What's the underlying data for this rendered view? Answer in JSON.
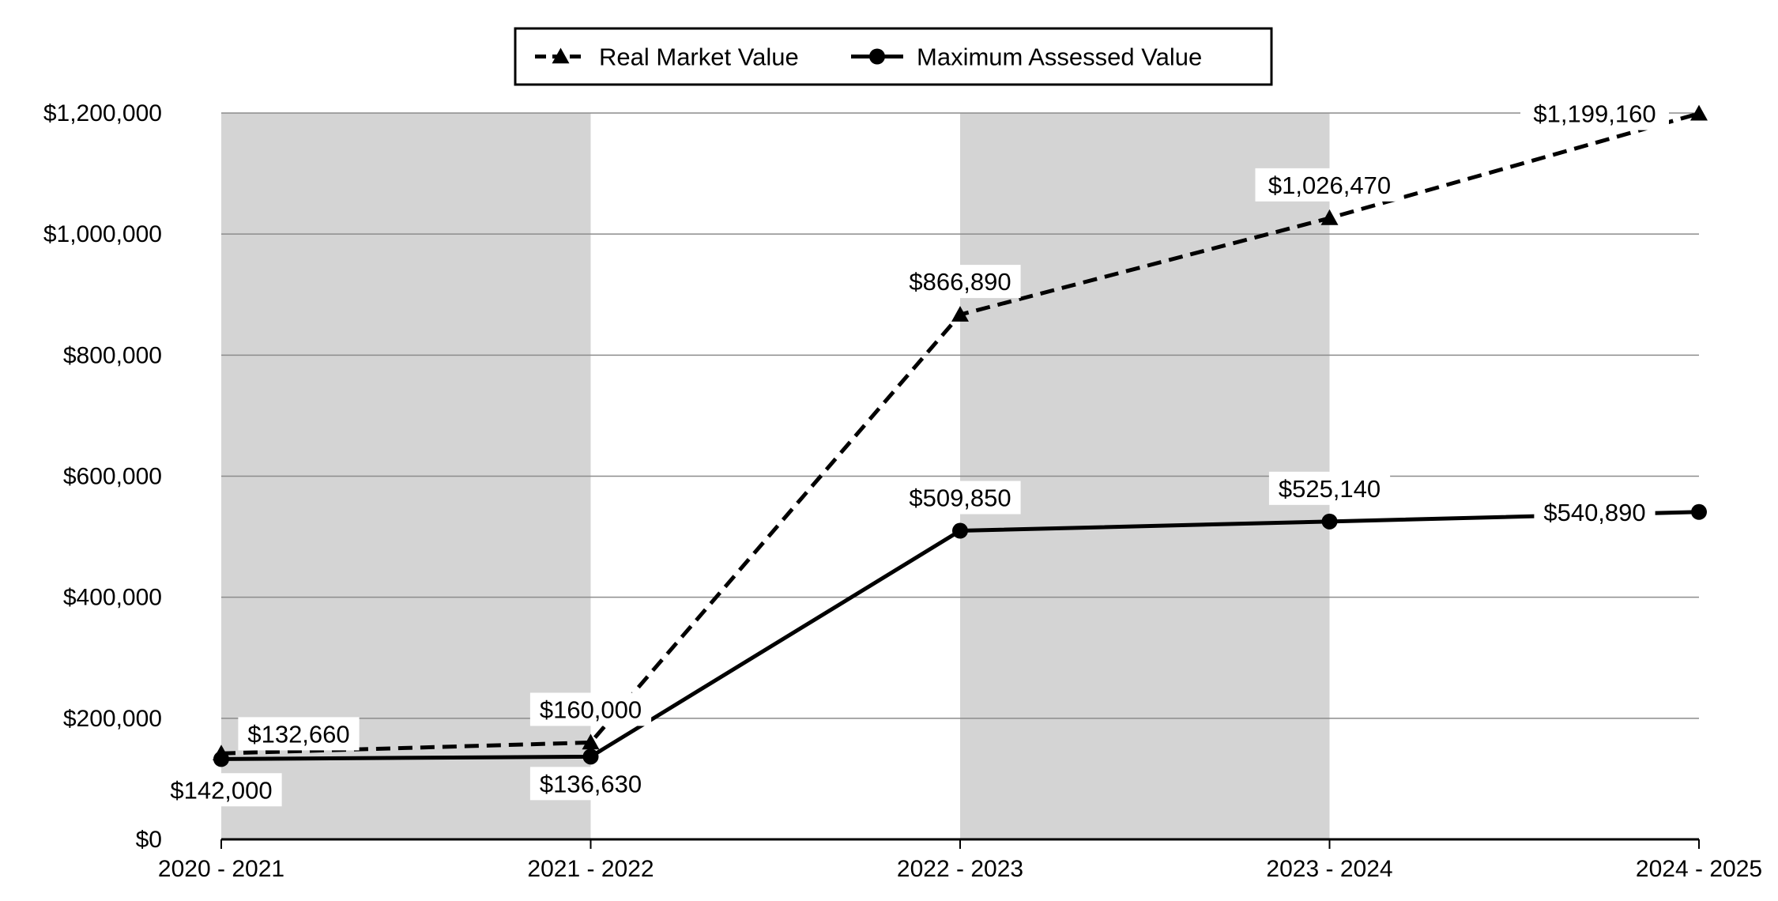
{
  "chart_data": {
    "type": "line",
    "title": "",
    "xlabel": "",
    "ylabel": "",
    "categories": [
      "2020 - 2021",
      "2021 - 2022",
      "2022 - 2023",
      "2023 - 2024",
      "2024 - 2025"
    ],
    "ylim": [
      0,
      1200000
    ],
    "yticks": [
      {
        "value": 0,
        "label": "$0"
      },
      {
        "value": 200000,
        "label": "$200,000"
      },
      {
        "value": 400000,
        "label": "$400,000"
      },
      {
        "value": 600000,
        "label": "$600,000"
      },
      {
        "value": 800000,
        "label": "$800,000"
      },
      {
        "value": 1000000,
        "label": "$1,000,000"
      },
      {
        "value": 1200000,
        "label": "$1,200,000"
      }
    ],
    "grid": true,
    "shaded_bands_categories": [
      "2020 - 2021",
      "2022 - 2023"
    ],
    "band_color": "#d4d4d4",
    "legend_position": "top-center",
    "series": [
      {
        "name": "Real Market Value",
        "line_style": "dashed",
        "marker": "triangle",
        "color": "#000000",
        "values": [
          142000,
          160000,
          866890,
          1026470,
          1199160
        ],
        "labels": [
          "$142,000",
          "$160,000",
          "$866,890",
          "$1,026,470",
          "$1,199,160"
        ]
      },
      {
        "name": "Maximum Assessed Value",
        "line_style": "solid",
        "marker": "circle",
        "color": "#000000",
        "values": [
          132660,
          136630,
          509850,
          525140,
          540890
        ],
        "labels": [
          "$132,660",
          "$136,630",
          "$509,850",
          "$525,140",
          "$540,890"
        ]
      }
    ]
  }
}
